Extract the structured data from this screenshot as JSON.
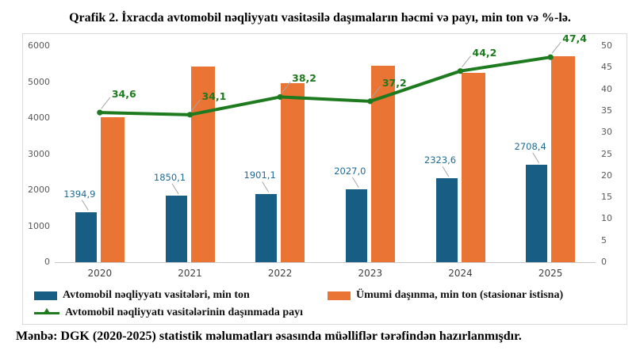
{
  "title": "Qrafik 2. İxracda avtomobil nəqliyyatı vasitəsilə daşımaların həcmi və payı, min ton və %-lə.",
  "source": "Mənbə: DGK (2020-2025) statistik məlumatları əsasında müəlliflər tərəfindən hazırlanmışdır.",
  "colors": {
    "bar_blue": "#185E84",
    "bar_orange": "#E97434",
    "line_green": "#1E7A1E",
    "leader_gray": "#A6A6A6",
    "axis_text": "#595959",
    "frame_border": "#D9D9D9"
  },
  "chart_data": {
    "type": "combo-bar-line",
    "categories": [
      "2020",
      "2021",
      "2022",
      "2023",
      "2024",
      "2025"
    ],
    "series": [
      {
        "name": "Avtomobil nəqliyyatı vasitələri, min ton",
        "type": "bar",
        "axis": "left",
        "color": "#185E84",
        "values": [
          1394.9,
          1850.1,
          1901.1,
          2027.0,
          2323.6,
          2708.4
        ],
        "value_labels": [
          "1394,9",
          "1850,1",
          "1901,1",
          "2027,0",
          "2323,6",
          "2708,4"
        ]
      },
      {
        "name": "Ümumi daşınma, min ton (stasionar istisna)",
        "type": "bar",
        "axis": "left",
        "color": "#E97434",
        "values": [
          4032,
          5425,
          4977,
          5449,
          5257,
          5714
        ],
        "value_labels": []
      },
      {
        "name": "Avtomobil nəqliyyatı vasitələrinin daşınmada payı",
        "type": "line",
        "axis": "right",
        "color": "#1E7A1E",
        "values": [
          34.6,
          34.1,
          38.2,
          37.2,
          44.2,
          47.4
        ],
        "value_labels": [
          "34,6",
          "34,1",
          "38,2",
          "37,2",
          "44,2",
          "47,4"
        ]
      }
    ],
    "left_axis": {
      "min": 0,
      "max": 6000,
      "step": 1000
    },
    "right_axis": {
      "min": 0,
      "max": 50,
      "step": 5
    },
    "legend_position": "bottom",
    "grid": false
  }
}
